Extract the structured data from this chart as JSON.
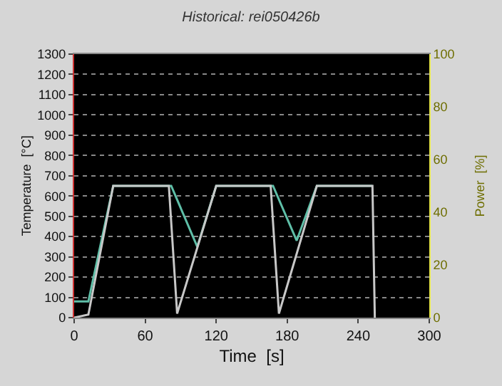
{
  "chart_data": {
    "type": "line",
    "title": "Historical: rei050426b",
    "xlabel": "Time  [s]",
    "ylabel": "Temperature  [°C]",
    "y2label": "Power  [%]",
    "xlim": [
      0,
      300
    ],
    "xticks": [
      0,
      60,
      120,
      180,
      240,
      300
    ],
    "ylim": [
      0,
      1300
    ],
    "yticks": [
      0,
      100,
      200,
      300,
      400,
      500,
      600,
      700,
      800,
      900,
      1000,
      1100,
      1200,
      1300
    ],
    "y2lim": [
      0,
      100
    ],
    "y2ticks": [
      0,
      20,
      40,
      60,
      80,
      100
    ],
    "grid": "y",
    "series": [
      {
        "color": "#5fbfa8",
        "x": [
          0,
          12,
          33,
          82,
          104,
          120,
          168,
          188,
          205,
          252
        ],
        "values": [
          80,
          80,
          650,
          650,
          350,
          650,
          650,
          380,
          650,
          650
        ]
      },
      {
        "color": "#c8c8c8",
        "x": [
          0,
          12,
          33,
          80,
          87,
          120,
          166,
          173,
          205,
          252,
          254
        ],
        "values": [
          0,
          15,
          650,
          650,
          20,
          650,
          650,
          20,
          650,
          650,
          0
        ]
      }
    ]
  }
}
